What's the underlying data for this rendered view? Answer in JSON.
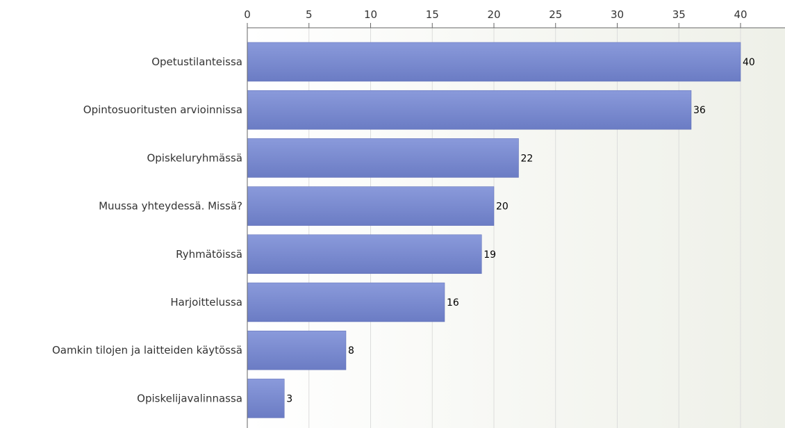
{
  "chart_data": {
    "type": "bar",
    "orientation": "horizontal",
    "categories": [
      "Opetustilanteissa",
      "Opintosuoritusten arvioinnissa",
      "Opiskeluryhmässä",
      "Muussa yhteydessä. Missä?",
      "Ryhmätöissä",
      "Harjoittelussa",
      "Oamkin tilojen ja laitteiden käytössä",
      "Opiskelijavalinnassa"
    ],
    "values": [
      40,
      36,
      22,
      20,
      19,
      16,
      8,
      3
    ],
    "xlim": [
      0,
      43.6
    ],
    "xticks": [
      0,
      5,
      10,
      15,
      20,
      25,
      30,
      35,
      40
    ],
    "axis_position": "top",
    "grid": true,
    "data_labels": true,
    "title": "",
    "xlabel": "",
    "ylabel": ""
  },
  "colors": {
    "bar_top": "#8a9adb",
    "bar_bottom": "#6b7cc4",
    "bar_edge": "#5a6ab5",
    "plot_bg_left": "#ffffff",
    "plot_bg_right": "#eef0e8",
    "grid": "#dcdcdc",
    "axis": "#666666"
  }
}
